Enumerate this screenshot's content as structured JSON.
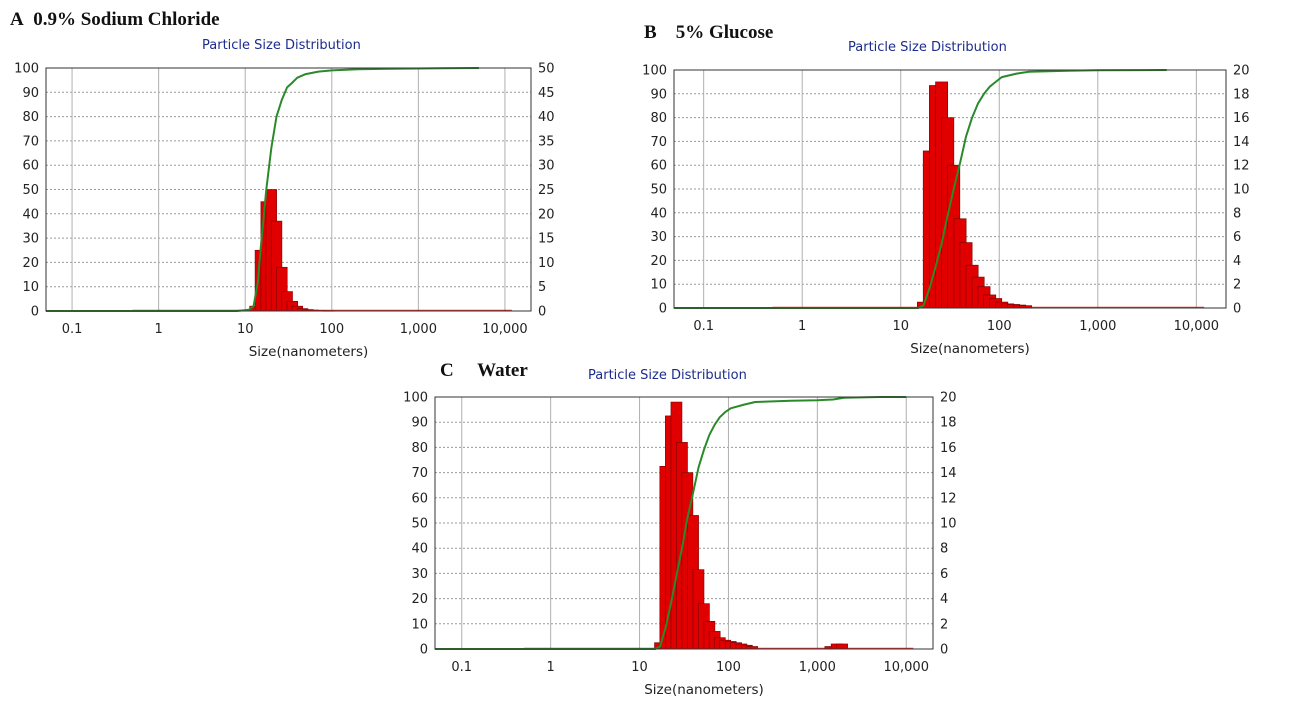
{
  "panels": [
    {
      "letter": "A",
      "label": "0.9% Sodium Chloride",
      "title": "Particle Size Distribution",
      "xlabel": "Size(nanometers)",
      "x_ticks": [
        "0.1",
        "1",
        "10",
        "100",
        "1,000",
        "10,000"
      ],
      "left_ticks": [
        "0",
        "10",
        "20",
        "30",
        "40",
        "50",
        "60",
        "70",
        "80",
        "90",
        "100"
      ],
      "right_ticks": [
        "0",
        "5",
        "10",
        "15",
        "20",
        "25",
        "30",
        "35",
        "40",
        "45",
        "50"
      ]
    },
    {
      "letter": "B",
      "label": "5% Glucose",
      "title": "Particle Size Distribution",
      "xlabel": "Size(nanometers)",
      "x_ticks": [
        "0.1",
        "1",
        "10",
        "100",
        "1,000",
        "10,000"
      ],
      "left_ticks": [
        "0",
        "10",
        "20",
        "30",
        "40",
        "50",
        "60",
        "70",
        "80",
        "90",
        "100"
      ],
      "right_ticks": [
        "0",
        "2",
        "4",
        "6",
        "8",
        "10",
        "12",
        "14",
        "16",
        "18",
        "20"
      ]
    },
    {
      "letter": "C",
      "label": "Water",
      "title": "Particle Size Distribution",
      "xlabel": "Size(nanometers)",
      "x_ticks": [
        "0.1",
        "1",
        "10",
        "100",
        "1,000",
        "10,000"
      ],
      "left_ticks": [
        "0",
        "10",
        "20",
        "30",
        "40",
        "50",
        "60",
        "70",
        "80",
        "90",
        "100"
      ],
      "right_ticks": [
        "0",
        "2",
        "4",
        "6",
        "8",
        "10",
        "12",
        "14",
        "16",
        "18",
        "20"
      ]
    }
  ],
  "chart_data": [
    {
      "type": "bar",
      "title": "Particle Size Distribution",
      "xlabel": "Size(nanometers)",
      "xscale": "log",
      "xlim": [
        0.05,
        20000
      ],
      "ylim_left": [
        0,
        100
      ],
      "ylim_right": [
        0,
        50
      ],
      "grid": true,
      "bar_color": "#e00000",
      "curve_color": "#2a8a2a",
      "series": [
        {
          "kind": "histogram",
          "axis": "right",
          "x": [
            13,
            15,
            17.5,
            20,
            23,
            26.5,
            30.5,
            35,
            40,
            46,
            53,
            61,
            70,
            80,
            92
          ],
          "values": [
            1,
            12.5,
            22.5,
            25,
            18.5,
            9,
            4,
            2,
            1,
            0.5,
            0.3,
            0.2,
            0.1,
            0.1,
            0.05
          ]
        },
        {
          "kind": "cumulative",
          "axis": "left",
          "x": [
            0.05,
            1,
            8,
            11,
            12.5,
            14,
            15,
            17.5,
            20,
            23,
            26.5,
            30.5,
            35,
            40,
            50,
            70,
            100,
            200,
            500,
            1000,
            2000,
            5000
          ],
          "values": [
            0,
            0,
            0,
            0.5,
            2,
            12,
            25,
            50,
            67,
            80,
            87,
            92,
            94,
            96,
            97.5,
            98.5,
            99,
            99.5,
            99.7,
            99.8,
            99.9,
            100
          ]
        }
      ]
    },
    {
      "type": "bar",
      "title": "Particle Size Distribution",
      "xlabel": "Size(nanometers)",
      "xscale": "log",
      "xlim": [
        0.05,
        20000
      ],
      "ylim_left": [
        0,
        100
      ],
      "ylim_right": [
        0,
        20
      ],
      "grid": true,
      "bar_color": "#e00000",
      "curve_color": "#2a8a2a",
      "series": [
        {
          "kind": "histogram",
          "axis": "right",
          "x": [
            17,
            19.5,
            22.5,
            26,
            30,
            34.5,
            40,
            46,
            53,
            61,
            70,
            80,
            92,
            106,
            122,
            140,
            161,
            185
          ],
          "values": [
            0.5,
            13.2,
            18.7,
            19,
            16,
            12,
            7.5,
            5.5,
            3.6,
            2.6,
            1.8,
            1.1,
            0.8,
            0.5,
            0.35,
            0.3,
            0.25,
            0.2
          ]
        },
        {
          "kind": "cumulative",
          "axis": "left",
          "x": [
            0.05,
            1,
            10,
            15,
            17,
            19.5,
            22.5,
            26,
            30,
            34.5,
            40,
            46,
            53,
            61,
            70,
            80,
            92,
            106,
            150,
            200,
            500,
            1000,
            5000
          ],
          "values": [
            0,
            0,
            0,
            0,
            1,
            8,
            17,
            27,
            39,
            50,
            61,
            72,
            80,
            86,
            90,
            93,
            95,
            97,
            98.5,
            99.3,
            99.7,
            99.9,
            100
          ]
        }
      ]
    },
    {
      "type": "bar",
      "title": "Particle Size Distribution",
      "xlabel": "Size(nanometers)",
      "xscale": "log",
      "xlim": [
        0.05,
        20000
      ],
      "ylim_left": [
        0,
        100
      ],
      "ylim_right": [
        0,
        20
      ],
      "grid": true,
      "bar_color": "#e00000",
      "curve_color": "#2a8a2a",
      "series": [
        {
          "kind": "histogram",
          "axis": "right",
          "x": [
            17,
            19.5,
            22.5,
            26,
            30,
            34.5,
            40,
            46,
            53,
            61,
            70,
            80,
            92,
            106,
            122,
            140,
            161,
            185,
            1400,
            1650,
            1900
          ],
          "values": [
            0.5,
            14.5,
            18.5,
            19.6,
            16.4,
            14,
            10.6,
            6.3,
            3.6,
            2.2,
            1.4,
            0.9,
            0.7,
            0.6,
            0.5,
            0.4,
            0.3,
            0.2,
            0.2,
            0.4,
            0.4
          ]
        },
        {
          "kind": "cumulative",
          "axis": "left",
          "x": [
            0.05,
            1,
            10,
            15,
            17,
            19.5,
            22.5,
            26,
            30,
            34.5,
            40,
            46,
            53,
            61,
            70,
            80,
            92,
            106,
            150,
            200,
            500,
            1000,
            1500,
            2000,
            5000,
            10000
          ],
          "values": [
            0,
            0,
            0,
            0,
            1,
            8,
            18,
            29,
            40,
            52,
            62,
            72,
            79,
            85,
            89,
            92,
            94,
            95.5,
            97,
            98,
            98.5,
            98.7,
            99,
            99.7,
            100,
            100
          ]
        }
      ]
    }
  ]
}
